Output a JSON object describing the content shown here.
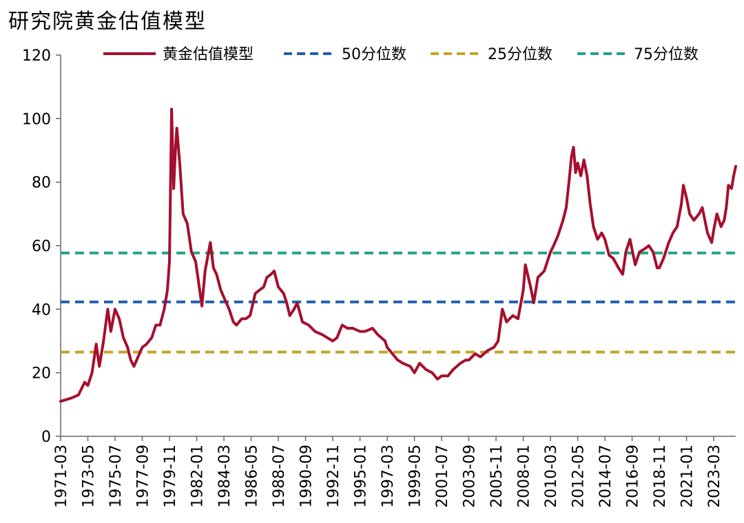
{
  "title": "研究院黄金估值模型",
  "chart_data": {
    "type": "line",
    "title": "研究院黄金估值模型",
    "xlabel": "",
    "ylabel": "",
    "ylim": [
      0,
      120
    ],
    "yticks": [
      0,
      20,
      40,
      60,
      80,
      100,
      120
    ],
    "grid": false,
    "legend_position": "top",
    "x_tick_labels": [
      "1971-03",
      "1973-05",
      "1975-07",
      "1977-09",
      "1979-11",
      "1982-01",
      "1984-03",
      "1986-05",
      "1988-07",
      "1990-09",
      "1992-11",
      "1995-01",
      "1997-03",
      "1999-05",
      "2001-07",
      "2003-09",
      "2005-11",
      "2008-01",
      "2010-03",
      "2012-05",
      "2014-07",
      "2016-09",
      "2018-11",
      "2021-01",
      "2023-03"
    ],
    "x_range": [
      "1971-03",
      "2024-12"
    ],
    "series": [
      {
        "name": "黄金估值模型",
        "color": "#a50f2d",
        "style": "solid",
        "points": [
          [
            "1971-03",
            11
          ],
          [
            "1972-01",
            12
          ],
          [
            "1972-08",
            13
          ],
          [
            "1973-02",
            17
          ],
          [
            "1973-05",
            16
          ],
          [
            "1973-09",
            20
          ],
          [
            "1974-01",
            29
          ],
          [
            "1974-04",
            22
          ],
          [
            "1974-08",
            30
          ],
          [
            "1974-12",
            40
          ],
          [
            "1975-03",
            33
          ],
          [
            "1975-07",
            40
          ],
          [
            "1975-11",
            37
          ],
          [
            "1976-03",
            31
          ],
          [
            "1976-07",
            28
          ],
          [
            "1976-10",
            24
          ],
          [
            "1977-01",
            22
          ],
          [
            "1977-05",
            25
          ],
          [
            "1977-09",
            28
          ],
          [
            "1978-01",
            29
          ],
          [
            "1978-06",
            31
          ],
          [
            "1978-10",
            35
          ],
          [
            "1979-02",
            35
          ],
          [
            "1979-06",
            40
          ],
          [
            "1979-09",
            46
          ],
          [
            "1979-11",
            55
          ],
          [
            "1980-01",
            103
          ],
          [
            "1980-03",
            78
          ],
          [
            "1980-05",
            92
          ],
          [
            "1980-06",
            97
          ],
          [
            "1980-09",
            85
          ],
          [
            "1980-12",
            70
          ],
          [
            "1981-04",
            67
          ],
          [
            "1981-08",
            58
          ],
          [
            "1981-12",
            55
          ],
          [
            "1982-03",
            48
          ],
          [
            "1982-06",
            41
          ],
          [
            "1982-09",
            52
          ],
          [
            "1983-02",
            61
          ],
          [
            "1983-05",
            53
          ],
          [
            "1983-08",
            51
          ],
          [
            "1983-12",
            46
          ],
          [
            "1984-04",
            43
          ],
          [
            "1984-08",
            40
          ],
          [
            "1984-12",
            36
          ],
          [
            "1985-03",
            35
          ],
          [
            "1985-08",
            37
          ],
          [
            "1985-12",
            37
          ],
          [
            "1986-04",
            38
          ],
          [
            "1986-09",
            45
          ],
          [
            "1987-01",
            46
          ],
          [
            "1987-05",
            47
          ],
          [
            "1987-08",
            50
          ],
          [
            "1987-12",
            51
          ],
          [
            "1988-03",
            52
          ],
          [
            "1988-07",
            47
          ],
          [
            "1988-12",
            45
          ],
          [
            "1989-03",
            42
          ],
          [
            "1989-06",
            38
          ],
          [
            "1989-10",
            40
          ],
          [
            "1990-01",
            42
          ],
          [
            "1990-06",
            36
          ],
          [
            "1990-12",
            35
          ],
          [
            "1991-06",
            33
          ],
          [
            "1992-01",
            32
          ],
          [
            "1992-06",
            31
          ],
          [
            "1992-11",
            30
          ],
          [
            "1993-03",
            31
          ],
          [
            "1993-08",
            35
          ],
          [
            "1994-01",
            34
          ],
          [
            "1994-06",
            34
          ],
          [
            "1995-01",
            33
          ],
          [
            "1995-06",
            33
          ],
          [
            "1996-01",
            34
          ],
          [
            "1996-06",
            32
          ],
          [
            "1997-01",
            30
          ],
          [
            "1997-03",
            28
          ],
          [
            "1997-08",
            26
          ],
          [
            "1998-01",
            24
          ],
          [
            "1998-06",
            23
          ],
          [
            "1999-01",
            22
          ],
          [
            "1999-05",
            20
          ],
          [
            "1999-10",
            23
          ],
          [
            "2000-04",
            21
          ],
          [
            "2000-10",
            20
          ],
          [
            "2001-03",
            18
          ],
          [
            "2001-07",
            19
          ],
          [
            "2002-01",
            19
          ],
          [
            "2002-06",
            21
          ],
          [
            "2003-01",
            23
          ],
          [
            "2003-06",
            24
          ],
          [
            "2003-09",
            24
          ],
          [
            "2004-03",
            26
          ],
          [
            "2004-08",
            25
          ],
          [
            "2005-03",
            27
          ],
          [
            "2005-09",
            28
          ],
          [
            "2006-01",
            30
          ],
          [
            "2006-05",
            40
          ],
          [
            "2006-09",
            36
          ],
          [
            "2007-03",
            38
          ],
          [
            "2007-08",
            37
          ],
          [
            "2008-01",
            46
          ],
          [
            "2008-03",
            54
          ],
          [
            "2008-08",
            47
          ],
          [
            "2008-11",
            42
          ],
          [
            "2009-03",
            50
          ],
          [
            "2009-09",
            52
          ],
          [
            "2010-01",
            56
          ],
          [
            "2010-03",
            58
          ],
          [
            "2010-06",
            60
          ],
          [
            "2010-10",
            63
          ],
          [
            "2011-03",
            68
          ],
          [
            "2011-06",
            72
          ],
          [
            "2011-09",
            81
          ],
          [
            "2011-11",
            88
          ],
          [
            "2012-01",
            91
          ],
          [
            "2012-03",
            83
          ],
          [
            "2012-05",
            86
          ],
          [
            "2012-08",
            82
          ],
          [
            "2012-11",
            87
          ],
          [
            "2013-02",
            82
          ],
          [
            "2013-05",
            73
          ],
          [
            "2013-08",
            66
          ],
          [
            "2013-12",
            62
          ],
          [
            "2014-04",
            64
          ],
          [
            "2014-07",
            62
          ],
          [
            "2014-11",
            57
          ],
          [
            "2015-03",
            56
          ],
          [
            "2015-08",
            53
          ],
          [
            "2015-12",
            51
          ],
          [
            "2016-03",
            58
          ],
          [
            "2016-07",
            62
          ],
          [
            "2016-12",
            54
          ],
          [
            "2017-04",
            58
          ],
          [
            "2017-09",
            59
          ],
          [
            "2018-01",
            60
          ],
          [
            "2018-05",
            58
          ],
          [
            "2018-09",
            53
          ],
          [
            "2018-11",
            53
          ],
          [
            "2019-03",
            56
          ],
          [
            "2019-08",
            61
          ],
          [
            "2019-12",
            64
          ],
          [
            "2020-04",
            66
          ],
          [
            "2020-08",
            73
          ],
          [
            "2020-10",
            79
          ],
          [
            "2021-01",
            75
          ],
          [
            "2021-04",
            70
          ],
          [
            "2021-08",
            68
          ],
          [
            "2022-01",
            70
          ],
          [
            "2022-04",
            72
          ],
          [
            "2022-09",
            64
          ],
          [
            "2023-01",
            61
          ],
          [
            "2023-03",
            65
          ],
          [
            "2023-06",
            70
          ],
          [
            "2023-10",
            66
          ],
          [
            "2024-01",
            68
          ],
          [
            "2024-03",
            72
          ],
          [
            "2024-05",
            79
          ],
          [
            "2024-08",
            78
          ],
          [
            "2024-10",
            82
          ],
          [
            "2024-12",
            85
          ]
        ]
      },
      {
        "name": "50分位数",
        "color": "#1f5fad",
        "style": "dashed",
        "value": 42.3
      },
      {
        "name": "25分位数",
        "color": "#c9a227",
        "style": "dashed",
        "value": 26.5
      },
      {
        "name": "75分位数",
        "color": "#1fa38a",
        "style": "dashed",
        "value": 57.7
      }
    ]
  }
}
